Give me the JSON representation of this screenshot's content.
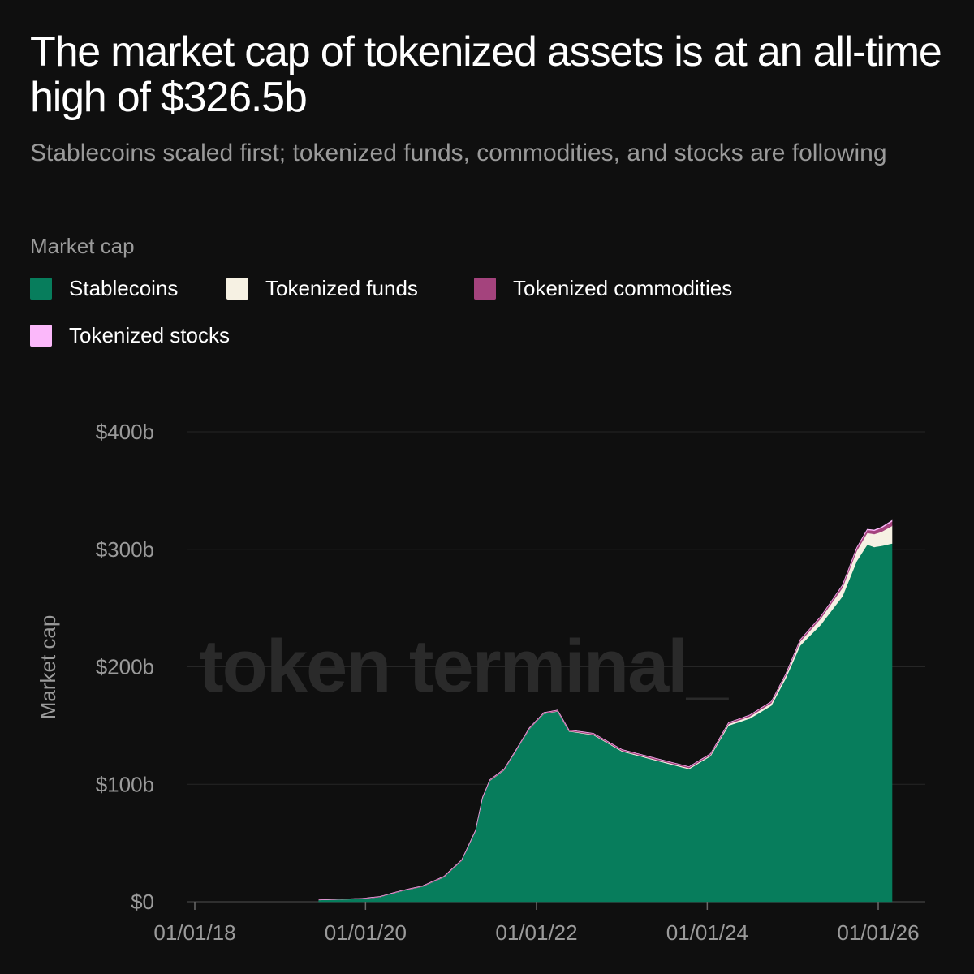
{
  "title": "The market cap of tokenized assets is at an all-time high of $326.5b",
  "subtitle": "Stablecoins scaled first; tokenized funds, commodities, and stocks are following",
  "legend_title": "Market cap",
  "watermark": "token terminal_",
  "legend": [
    {
      "label": "Stablecoins",
      "color": "#077d5c"
    },
    {
      "label": "Tokenized funds",
      "color": "#f6f1e3"
    },
    {
      "label": "Tokenized commodities",
      "color": "#a4437d"
    },
    {
      "label": "Tokenized stocks",
      "color": "#fbb8fa"
    }
  ],
  "chart_data": {
    "type": "area",
    "stacked": true,
    "ylabel": "Market cap",
    "ylim": [
      0,
      400
    ],
    "yticks": [
      {
        "value": 0,
        "label": "$0"
      },
      {
        "value": 100,
        "label": "$100b"
      },
      {
        "value": 200,
        "label": "$200b"
      },
      {
        "value": 300,
        "label": "$300b"
      },
      {
        "value": 400,
        "label": "$400b"
      }
    ],
    "xlim": [
      "2018-01-01",
      "2026-03-15"
    ],
    "xticks": [
      {
        "value": "2018-01-01",
        "label": "01/01/18"
      },
      {
        "value": "2020-01-01",
        "label": "01/01/20"
      },
      {
        "value": "2022-01-01",
        "label": "01/01/22"
      },
      {
        "value": "2024-01-01",
        "label": "01/01/24"
      },
      {
        "value": "2026-01-01",
        "label": "01/01/26"
      }
    ],
    "grid": true,
    "legend_position": "top-left",
    "series": [
      {
        "name": "Stablecoins",
        "color": "#077d5c",
        "points": [
          [
            "2019-06-15",
            1.5
          ],
          [
            "2019-12-15",
            2.5
          ],
          [
            "2020-03-01",
            4
          ],
          [
            "2020-06-01",
            9
          ],
          [
            "2020-09-01",
            13
          ],
          [
            "2020-12-01",
            21
          ],
          [
            "2021-02-15",
            35
          ],
          [
            "2021-04-15",
            60
          ],
          [
            "2021-05-15",
            88
          ],
          [
            "2021-06-15",
            103
          ],
          [
            "2021-08-15",
            112
          ],
          [
            "2021-10-01",
            127
          ],
          [
            "2021-12-01",
            147
          ],
          [
            "2022-02-01",
            160
          ],
          [
            "2022-04-01",
            162
          ],
          [
            "2022-05-20",
            145
          ],
          [
            "2022-09-01",
            142
          ],
          [
            "2023-01-01",
            128
          ],
          [
            "2023-06-01",
            120
          ],
          [
            "2023-10-15",
            113
          ],
          [
            "2024-01-15",
            124
          ],
          [
            "2024-04-01",
            150
          ],
          [
            "2024-07-01",
            156
          ],
          [
            "2024-10-01",
            167
          ],
          [
            "2024-12-01",
            190
          ],
          [
            "2025-02-01",
            218
          ],
          [
            "2025-05-01",
            236
          ],
          [
            "2025-08-01",
            260
          ],
          [
            "2025-10-01",
            290
          ],
          [
            "2025-11-15",
            304
          ],
          [
            "2025-12-15",
            302
          ],
          [
            "2026-01-15",
            303
          ],
          [
            "2026-03-01",
            305
          ]
        ]
      },
      {
        "name": "Tokenized funds",
        "color": "#f6f1e3",
        "points": [
          [
            "2019-06-15",
            0
          ],
          [
            "2022-01-01",
            0.2
          ],
          [
            "2023-01-01",
            0.6
          ],
          [
            "2024-01-01",
            0.9
          ],
          [
            "2024-06-01",
            1.6
          ],
          [
            "2024-12-01",
            2.4
          ],
          [
            "2025-03-01",
            4
          ],
          [
            "2025-06-01",
            6
          ],
          [
            "2025-09-01",
            8
          ],
          [
            "2025-11-15",
            10
          ],
          [
            "2026-01-15",
            12
          ],
          [
            "2026-03-01",
            15
          ]
        ]
      },
      {
        "name": "Tokenized commodities",
        "color": "#a4437d",
        "points": [
          [
            "2019-06-15",
            0.2
          ],
          [
            "2022-01-01",
            0.8
          ],
          [
            "2023-01-01",
            1
          ],
          [
            "2024-01-01",
            1.1
          ],
          [
            "2024-12-01",
            1.3
          ],
          [
            "2025-06-01",
            1.8
          ],
          [
            "2025-11-15",
            2.6
          ],
          [
            "2026-01-15",
            3.2
          ],
          [
            "2026-03-01",
            3.8
          ]
        ]
      },
      {
        "name": "Tokenized stocks",
        "color": "#fbb8fa",
        "points": [
          [
            "2019-06-15",
            0
          ],
          [
            "2025-06-01",
            0.1
          ],
          [
            "2025-11-15",
            0.5
          ],
          [
            "2026-01-15",
            0.7
          ],
          [
            "2026-03-01",
            0.8
          ]
        ]
      }
    ]
  }
}
